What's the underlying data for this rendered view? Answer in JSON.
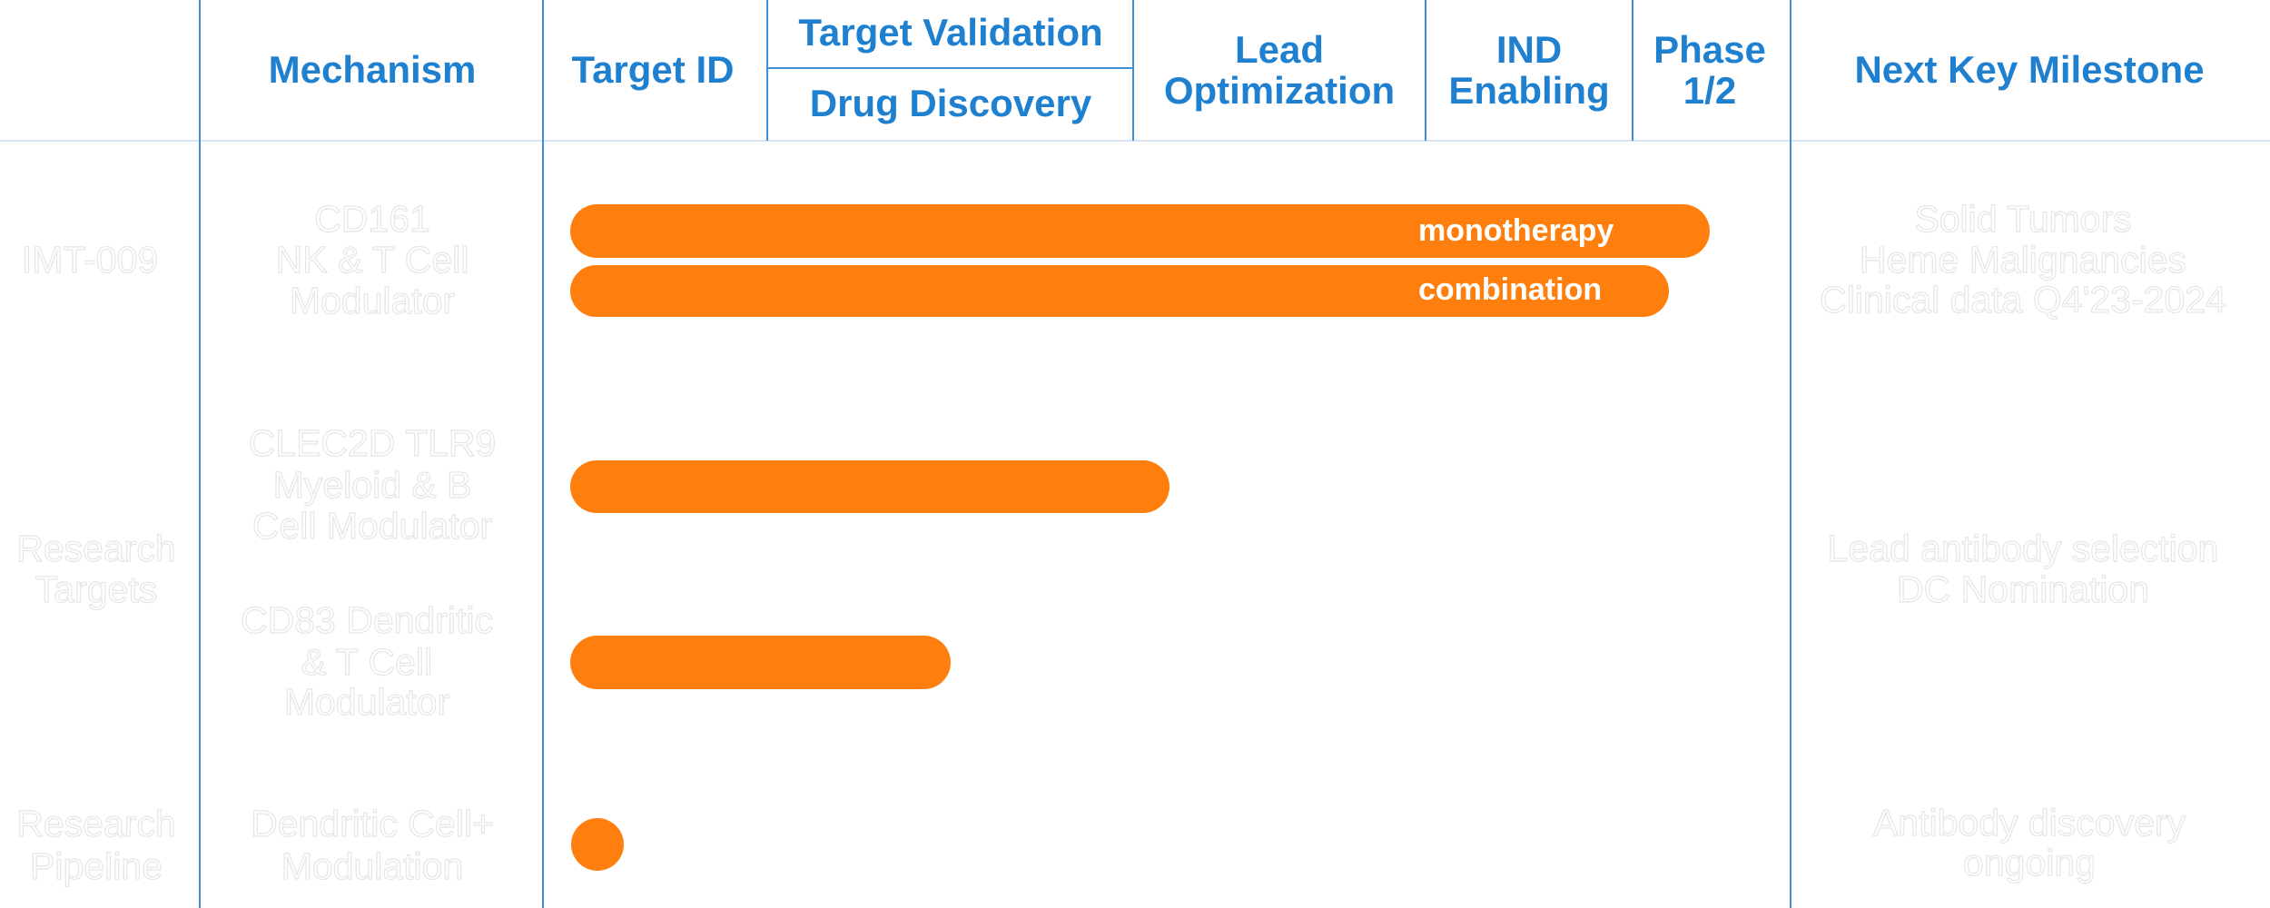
{
  "header": {
    "mechanism": "Mechanism",
    "target_id": "Target ID",
    "target_validation": "Target Validation",
    "drug_discovery": "Drug Discovery",
    "lead_optimization": [
      "Lead",
      "Optimization"
    ],
    "ind_enabling": [
      "IND",
      "Enabling"
    ],
    "phase": [
      "Phase",
      "1/2"
    ],
    "next_milestone": "Next Key Milestone"
  },
  "programs": [
    {
      "name": [
        "IMT-009"
      ],
      "mechanisms": [
        [
          "CD161",
          "NK & T Cell",
          "Modulator"
        ]
      ],
      "milestone": [
        "Solid Tumors",
        "Heme Malignancies",
        "Clinical data Q4'23-2024"
      ],
      "bar_labels": [
        "monotherapy",
        "combination"
      ]
    },
    {
      "name": [
        "Research",
        "Targets"
      ],
      "mechanisms": [
        [
          "CLEC2D TLR9",
          "Myeloid & B",
          "Cell Modulator"
        ],
        [
          "CD83 Dendritic",
          "& T Cell",
          "Modulator"
        ]
      ],
      "milestone": [
        "Lead antibody selection",
        "DC Nomination"
      ]
    },
    {
      "name": [
        "Research",
        "Pipeline"
      ],
      "mechanisms": [
        [
          "Dendritic Cell+",
          "Modulation"
        ]
      ],
      "milestone": [
        "Antibody discovery",
        "ongoing"
      ]
    }
  ]
}
